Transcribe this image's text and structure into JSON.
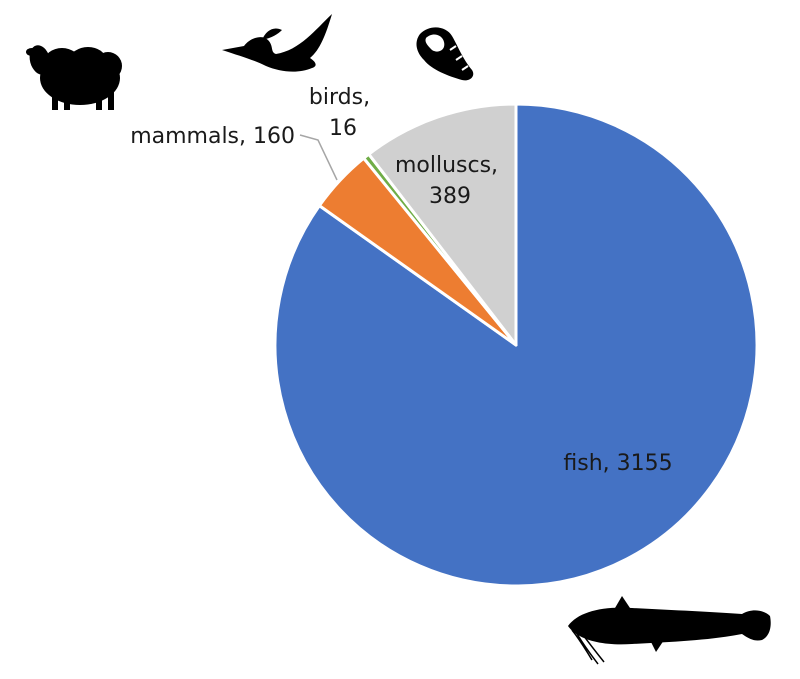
{
  "chart_data": {
    "type": "pie",
    "title": "",
    "start_angle_deg": 0,
    "direction": "clockwise",
    "slices": [
      {
        "key": "fish",
        "category": "fish",
        "value": 3155,
        "color": "#4472C4",
        "icon": "catfish-icon"
      },
      {
        "key": "mammals",
        "category": "mammals",
        "value": 160,
        "color": "#ED7D31",
        "icon": "sheep-icon"
      },
      {
        "key": "birds",
        "category": "birds",
        "value": 16,
        "color": "#70AD47",
        "icon": "duck-icon"
      },
      {
        "key": "molluscs",
        "category": "molluscs",
        "value": 389,
        "color": "#D0D0D0",
        "icon": "snail-shell-icon"
      }
    ],
    "labels": {
      "fish": [
        "fish, 3155"
      ],
      "mammals": [
        "mammals, 160"
      ],
      "birds": [
        "birds,",
        "16"
      ],
      "molluscs": [
        "molluscs,",
        "389"
      ]
    },
    "legend": "none"
  }
}
